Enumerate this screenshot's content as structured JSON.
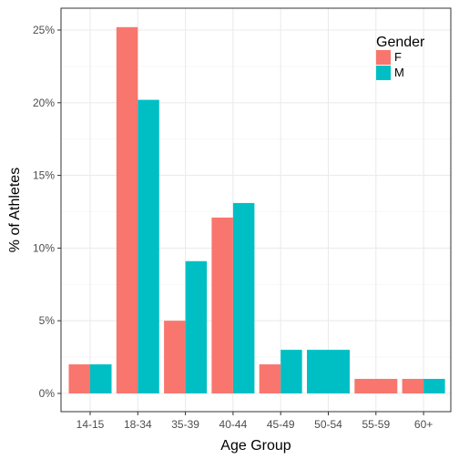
{
  "chart_data": {
    "type": "bar",
    "xlabel": "Age Group",
    "ylabel": "% of Athletes",
    "ylim": [
      0,
      0.26
    ],
    "yticks": [
      0,
      0.05,
      0.1,
      0.15,
      0.2,
      0.25
    ],
    "ytick_labels": [
      "0%",
      "5%",
      "10%",
      "15%",
      "20%",
      "25%"
    ],
    "categories": [
      "14-15",
      "18-34",
      "35-39",
      "40-44",
      "45-49",
      "50-54",
      "55-59",
      "60+"
    ],
    "series": [
      {
        "name": "F",
        "values": [
          0.02,
          0.252,
          0.05,
          0.121,
          0.02,
          null,
          0.01,
          0.01
        ]
      },
      {
        "name": "M",
        "values": [
          0.02,
          0.202,
          0.091,
          0.131,
          0.03,
          0.03,
          null,
          0.01
        ]
      }
    ],
    "legend": {
      "title": "Gender",
      "placement": "top-right"
    },
    "colors": {
      "F": "#F8766D",
      "M": "#00BFC4"
    },
    "grid": true
  }
}
